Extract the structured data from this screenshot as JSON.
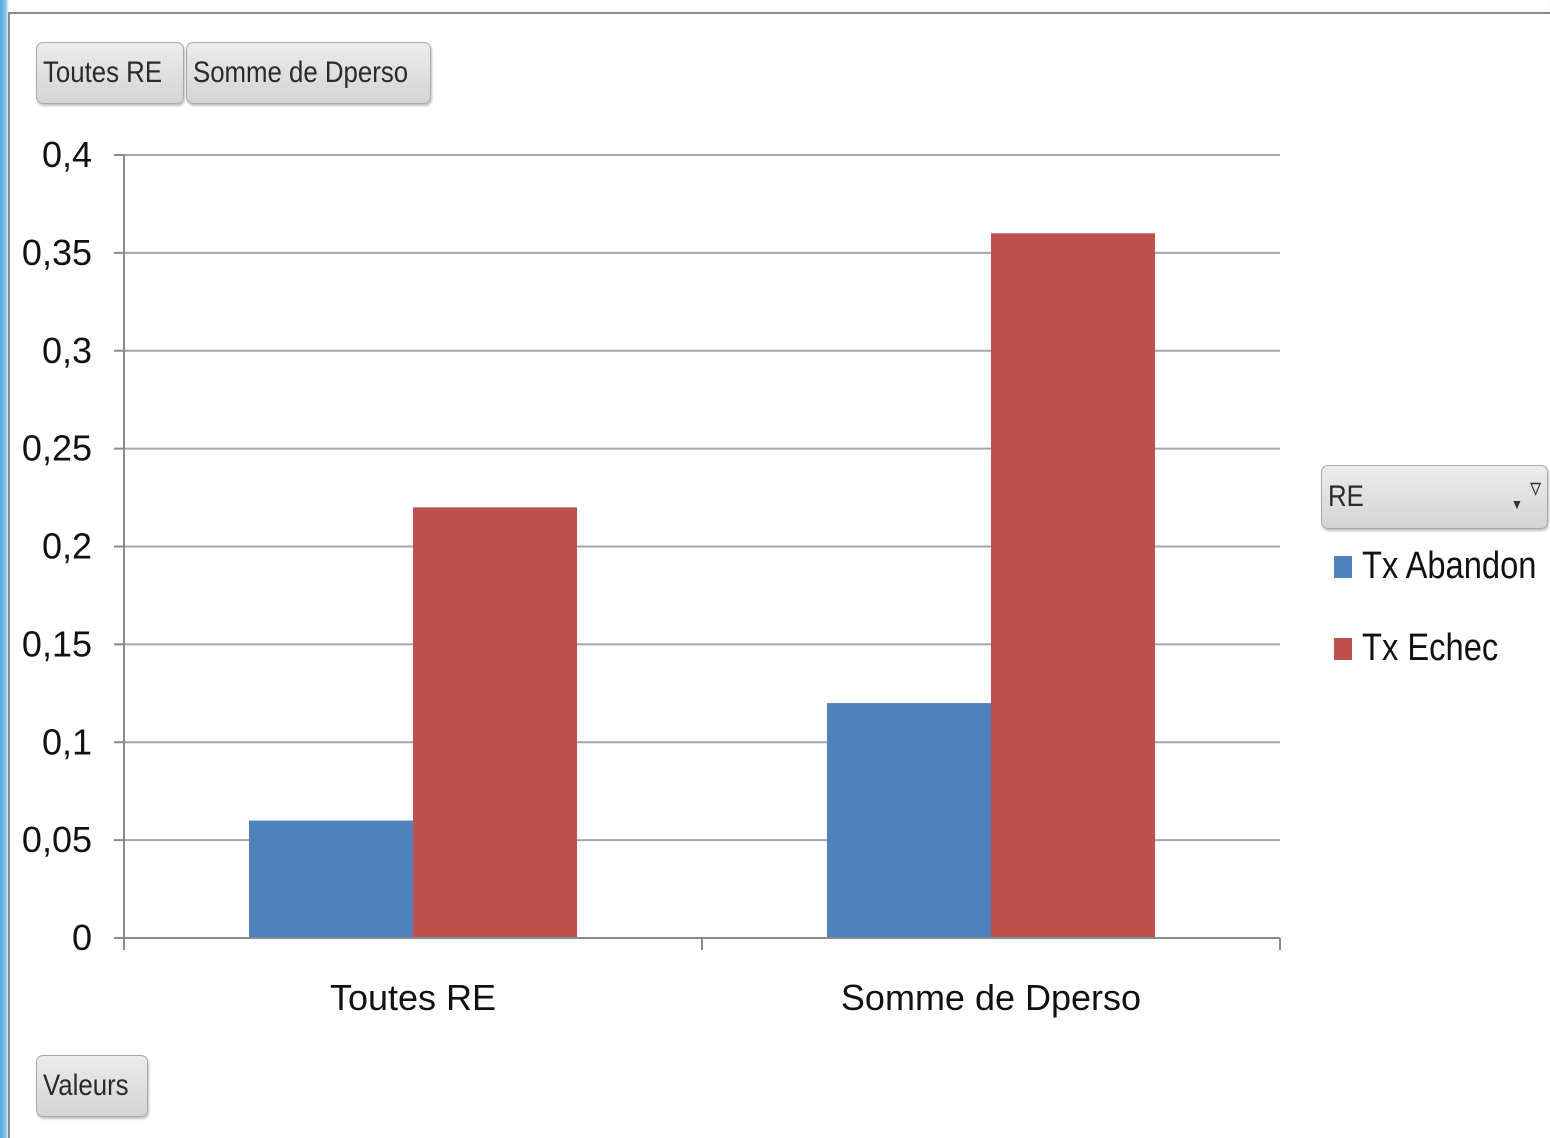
{
  "pivot_buttons": {
    "category_1": "Toutes RE",
    "category_2": "Somme de Dperso",
    "values": "Valeurs",
    "filter_field": "RE"
  },
  "icons": {
    "filter": "filter-icon",
    "dropdown": "chevron-down-icon"
  },
  "colors": {
    "tx_abandon": "#4f81bd",
    "tx_echec": "#c0504d",
    "grid": "#a6a6a6"
  },
  "chart_data": {
    "type": "bar",
    "categories": [
      "Toutes RE",
      "Somme de Dperso"
    ],
    "series": [
      {
        "name": "Tx Abandon",
        "values": [
          0.06,
          0.12
        ]
      },
      {
        "name": "Tx Echec",
        "values": [
          0.22,
          0.36
        ]
      }
    ],
    "title": "",
    "xlabel": "",
    "ylabel": "",
    "ylim": [
      0,
      0.4
    ],
    "yticks": [
      0,
      0.05,
      0.1,
      0.15,
      0.2,
      0.25,
      0.3,
      0.35,
      0.4
    ],
    "ytick_labels": [
      "0",
      "0,05",
      "0,1",
      "0,15",
      "0,2",
      "0,25",
      "0,3",
      "0,35",
      "0,4"
    ],
    "grid": true,
    "legend_position": "right"
  }
}
